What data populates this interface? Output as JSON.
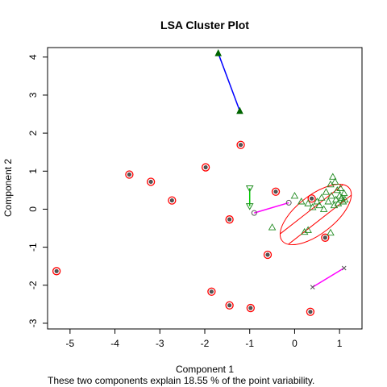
{
  "chart_data": {
    "type": "scatter",
    "title": "LSA Cluster Plot",
    "xlabel": "Component 1",
    "ylabel": "Component 2",
    "caption": "These two components explain 18.55 % of the point variability.",
    "xlim": [
      -5.5,
      1.5
    ],
    "ylim": [
      -3.15,
      4.25
    ],
    "xticks": [
      -5,
      -4,
      -3,
      -2,
      -1,
      0,
      1
    ],
    "yticks": [
      -3,
      -2,
      -1,
      0,
      1,
      2,
      3,
      4
    ],
    "grid": false,
    "legend": "none",
    "colors": {
      "circle_outline": "#ff0000",
      "circle_fill": "#555555",
      "triangle": "#228b22",
      "triangle_fill": "#006400",
      "cross": "#555555",
      "blue_line": "#0000ff",
      "magenta_line": "#ff00ff",
      "green_line": "#00cc00",
      "ellipse": "#ff0000"
    },
    "clusters": [
      {
        "marker": "circle",
        "points": [
          [
            -5.3,
            -1.63
          ],
          [
            -3.68,
            0.91
          ],
          [
            -3.2,
            0.72
          ],
          [
            -2.73,
            0.23
          ],
          [
            -1.98,
            1.1
          ],
          [
            -1.2,
            1.69
          ],
          [
            -1.45,
            -0.27
          ],
          [
            -1.85,
            -2.17
          ],
          [
            -1.45,
            -2.53
          ],
          [
            -0.98,
            -2.6
          ],
          [
            -0.6,
            -1.2
          ],
          [
            -0.42,
            0.46
          ],
          [
            0.38,
            0.28
          ],
          [
            0.68,
            -0.75
          ],
          [
            0.35,
            -2.7
          ]
        ]
      },
      {
        "marker": "triangle",
        "points": [
          [
            0.0,
            0.35
          ],
          [
            0.15,
            0.2
          ],
          [
            0.3,
            0.15
          ],
          [
            0.4,
            0.05
          ],
          [
            0.5,
            0.2
          ],
          [
            0.55,
            0.1
          ],
          [
            0.6,
            0.3
          ],
          [
            0.65,
            0.0
          ],
          [
            0.7,
            0.45
          ],
          [
            0.75,
            0.2
          ],
          [
            0.8,
            0.65
          ],
          [
            0.82,
            0.35
          ],
          [
            0.85,
            0.85
          ],
          [
            0.88,
            0.1
          ],
          [
            0.9,
            0.72
          ],
          [
            0.92,
            0.25
          ],
          [
            0.95,
            0.5
          ],
          [
            0.97,
            0.15
          ],
          [
            1.0,
            0.35
          ],
          [
            1.02,
            0.55
          ],
          [
            1.05,
            0.3
          ],
          [
            1.08,
            0.2
          ],
          [
            1.1,
            0.42
          ],
          [
            1.12,
            0.25
          ],
          [
            -0.5,
            -0.48
          ],
          [
            0.3,
            -0.55
          ],
          [
            0.22,
            -0.6
          ],
          [
            0.8,
            -0.62
          ],
          [
            1.05,
            0.3
          ]
        ]
      }
    ],
    "segments": [
      {
        "color": "blue_line",
        "from": [
          -1.7,
          4.1
        ],
        "to": [
          -1.22,
          2.58
        ],
        "end_marker": "filled-triangle"
      },
      {
        "color": "green_line",
        "from": [
          -1.0,
          0.55
        ],
        "to": [
          -1.0,
          0.08
        ],
        "end_marker": "triangle-down"
      },
      {
        "color": "magenta_line",
        "from": [
          -0.9,
          -0.1
        ],
        "to": [
          -0.13,
          0.17
        ],
        "end_marker": "circle-cross"
      },
      {
        "color": "magenta_line",
        "from": [
          0.4,
          -2.05
        ],
        "to": [
          1.1,
          -1.55
        ],
        "end_marker": "x-cross"
      }
    ],
    "ellipse": {
      "center": [
        0.47,
        -0.14
      ],
      "a": 0.95,
      "b": 0.5,
      "angle_deg": 38
    }
  }
}
